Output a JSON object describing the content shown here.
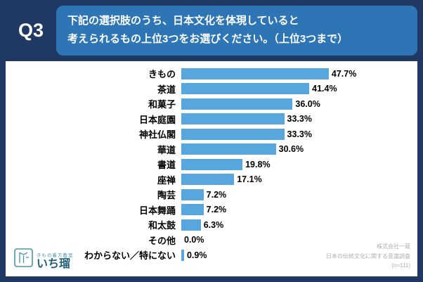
{
  "header": {
    "q_label": "Q3",
    "title_line1": "下記の選択肢のうち、日本文化を体現していると",
    "title_line2": "考えられるもの上位3つをお選びください。（上位3つまで）"
  },
  "chart_data": {
    "type": "bar",
    "orientation": "horizontal",
    "title": "下記の選択肢のうち、日本文化を体現していると考えられるもの上位3つをお選びください。（上位3つまで）",
    "categories": [
      "きもの",
      "茶道",
      "和菓子",
      "日本庭園",
      "神社仏閣",
      "華道",
      "書道",
      "座禅",
      "陶芸",
      "日本舞踊",
      "和太鼓",
      "その他",
      "わからない／特にない"
    ],
    "values": [
      47.7,
      41.4,
      36.0,
      33.3,
      33.3,
      30.6,
      19.8,
      17.1,
      7.2,
      7.2,
      6.3,
      0.0,
      0.9
    ],
    "value_labels": [
      "47.7%",
      "41.4%",
      "36.0%",
      "33.3%",
      "33.3%",
      "30.6%",
      "19.8%",
      "17.1%",
      "7.2%",
      "7.2%",
      "6.3%",
      "0.0%",
      "0.9%"
    ],
    "xlim": [
      0,
      50
    ],
    "bar_color": "#58a6de",
    "grid": false,
    "legend": false
  },
  "logo": {
    "tagline": "きもの着方教室",
    "name": "いち瑠"
  },
  "footer": {
    "source_line1": "株式会社一蔵",
    "source_line2": "日本の伝統文化に関する意識調査",
    "source_line3": "(n=111)"
  },
  "colors": {
    "background": "#1f3864",
    "title_box": "#2e75b6",
    "bar": "#58a6de",
    "logo_accent": "#4795a8",
    "source_text": "#b0b0b0"
  }
}
